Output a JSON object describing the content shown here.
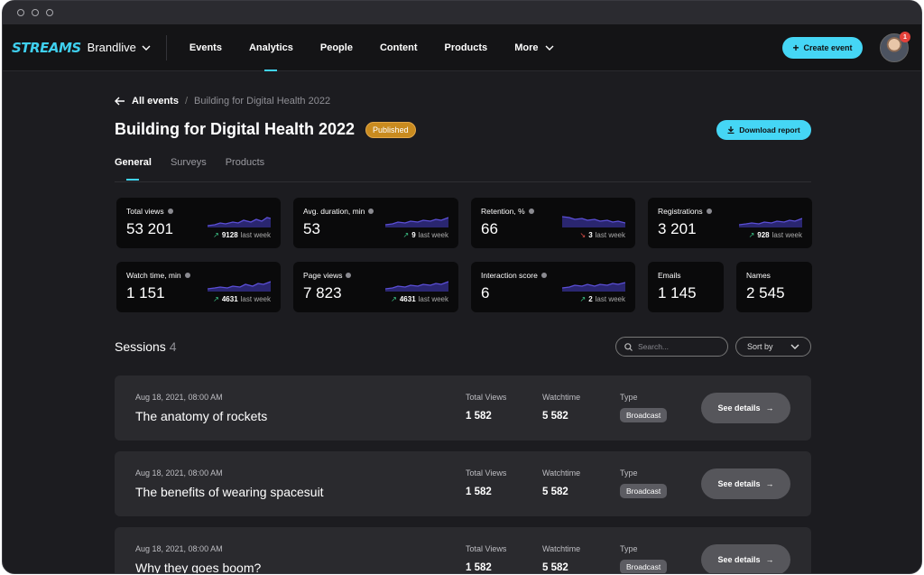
{
  "app": {
    "logo": "STREAMS",
    "brand": "Brandlive"
  },
  "nav": [
    {
      "label": "Events",
      "active": false
    },
    {
      "label": "Analytics",
      "active": true
    },
    {
      "label": "People",
      "active": false
    },
    {
      "label": "Content",
      "active": false
    },
    {
      "label": "Products",
      "active": false
    },
    {
      "label": "More",
      "active": false
    }
  ],
  "header": {
    "create_label": "Create event",
    "notification_count": "1"
  },
  "breadcrumb": {
    "back": "All events",
    "separator": "/",
    "current": "Building for Digital Health 2022"
  },
  "page": {
    "title": "Building for Digital Health 2022",
    "status": "Published",
    "download_label": "Download report"
  },
  "tabs": [
    {
      "label": "General",
      "active": true
    },
    {
      "label": "Surveys",
      "active": false
    },
    {
      "label": "Products",
      "active": false
    }
  ],
  "stats": [
    {
      "label": "Total views",
      "value": "53 201",
      "delta": "9128",
      "delta_suffix": "last week",
      "trend": "up"
    },
    {
      "label": "Avg. duration, min",
      "value": "53",
      "delta": "9",
      "delta_suffix": "last week",
      "trend": "up"
    },
    {
      "label": "Retention, %",
      "value": "66",
      "delta": "3",
      "delta_suffix": "last week",
      "trend": "down"
    },
    {
      "label": "Registrations",
      "value": "3 201",
      "delta": "928",
      "delta_suffix": "last week",
      "trend": "up"
    },
    {
      "label": "Watch time, min",
      "value": "1 151",
      "delta": "4631",
      "delta_suffix": "last week",
      "trend": "up"
    },
    {
      "label": "Page views",
      "value": "7 823",
      "delta": "4631",
      "delta_suffix": "last week",
      "trend": "up"
    },
    {
      "label": "Interaction score",
      "value": "6",
      "delta": "2",
      "delta_suffix": "last week",
      "trend": "up"
    },
    {
      "label": "Emails",
      "value": "1 145"
    },
    {
      "label": "Names",
      "value": "2 545"
    }
  ],
  "sessions": {
    "title": "Sessions",
    "count": "4",
    "search_placeholder": "Search...",
    "sort_label": "Sort by",
    "columns": {
      "views": "Total Views",
      "watch": "Watchtime",
      "type": "Type"
    },
    "details_label": "See details",
    "items": [
      {
        "date": "Aug 18, 2021, 08:00 AM",
        "title": "The anatomy of rockets",
        "views": "1 582",
        "watch": "5 582",
        "type": "Broadcast"
      },
      {
        "date": "Aug 18, 2021, 08:00 AM",
        "title": "The benefits of wearing spacesuit",
        "views": "1 582",
        "watch": "5 582",
        "type": "Broadcast"
      },
      {
        "date": "Aug 18, 2021, 08:00 AM",
        "title": "Why they goes boom?",
        "views": "1 582",
        "watch": "5 582",
        "type": "Broadcast"
      }
    ]
  },
  "colors": {
    "accent": "#45d6f5",
    "badge": "#c98b1f",
    "spark": "#5b4fd6",
    "up": "#3fcf8e",
    "down": "#e5524b"
  }
}
